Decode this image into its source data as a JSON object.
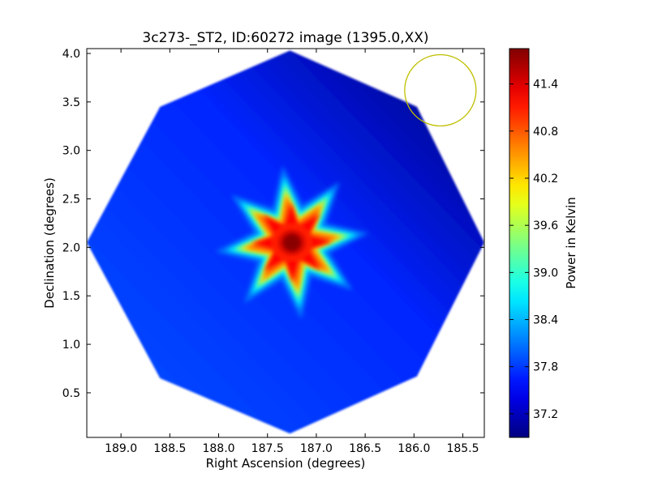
{
  "chart_data": {
    "type": "heatmap",
    "title": "3c273-_ST2, ID:60272 image (1395.0,XX)",
    "xlabel": "Right Ascension (degrees)",
    "ylabel": "Declination (degrees)",
    "xlim": [
      189.35,
      185.28
    ],
    "ylim": [
      0.04,
      4.05
    ],
    "x_ticks": [
      189.0,
      188.5,
      188.0,
      187.5,
      187.0,
      186.5,
      186.0,
      185.5
    ],
    "x_tick_labels": [
      "189.0",
      "188.5",
      "188.0",
      "187.5",
      "187.0",
      "186.5",
      "186.0",
      "185.5"
    ],
    "y_ticks": [
      0.5,
      1.0,
      1.5,
      2.0,
      2.5,
      3.0,
      3.5,
      4.0
    ],
    "y_tick_labels": [
      "0.5",
      "1.0",
      "1.5",
      "2.0",
      "2.5",
      "3.0",
      "3.5",
      "4.0"
    ],
    "colormap": "jet",
    "colorbar": {
      "label": "Power in Kelvin",
      "range": [
        36.9,
        41.85
      ],
      "ticks": [
        37.2,
        37.8,
        38.4,
        39.0,
        39.6,
        40.2,
        40.8,
        41.4
      ],
      "tick_labels": [
        "37.2",
        "37.8",
        "38.4",
        "39.0",
        "39.6",
        "40.2",
        "40.8",
        "41.4"
      ]
    },
    "footprint": {
      "shape": "octagon",
      "vertices_ra_dec": [
        [
          187.27,
          4.03
        ],
        [
          188.6,
          3.45
        ],
        [
          189.35,
          2.05
        ],
        [
          188.6,
          0.65
        ],
        [
          187.27,
          0.08
        ],
        [
          185.97,
          0.67
        ],
        [
          185.28,
          2.05
        ],
        [
          185.97,
          3.45
        ]
      ],
      "background_kelvin": 37.7,
      "gradient_low_corner": "upper-right",
      "gradient_low_kelvin": 37.0
    },
    "source": {
      "ra": 187.25,
      "dec": 2.05,
      "peak_kelvin": 41.8,
      "shape": "eight-pointed star"
    },
    "beam_circle": {
      "ra_center": 185.73,
      "dec_center": 3.62,
      "color": "#bfbf00"
    },
    "grid": false
  }
}
